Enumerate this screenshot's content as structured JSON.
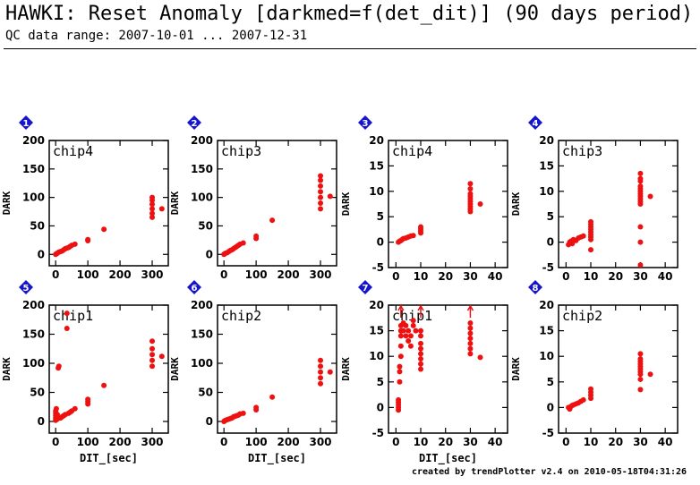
{
  "title": "HAWKI: Reset Anomaly [darkmed=f(det_dit)] (90 days period)",
  "subtitle": "QC data range: 2007-10-01 ... 2007-12-31",
  "footer": "created by trendPlotter v2.4 on 2010-05-18T04:31:26",
  "colors": {
    "points": "#ee1111",
    "badge": "#1515cc",
    "axis": "#000000"
  },
  "chart_data": [
    {
      "panel": "1",
      "type": "scatter",
      "label": "chip4",
      "xlabel": "",
      "ylabel": "DARK",
      "xlim": [
        -20,
        350
      ],
      "ylim": [
        -20,
        200
      ],
      "xticks": [
        0,
        100,
        200,
        300
      ],
      "yticks": [
        0,
        50,
        100,
        150,
        200
      ],
      "points": [
        [
          0,
          0
        ],
        [
          2,
          1
        ],
        [
          5,
          2
        ],
        [
          10,
          4
        ],
        [
          15,
          5
        ],
        [
          20,
          6
        ],
        [
          25,
          8
        ],
        [
          30,
          10
        ],
        [
          35,
          11
        ],
        [
          40,
          12
        ],
        [
          45,
          14
        ],
        [
          50,
          16
        ],
        [
          60,
          18
        ],
        [
          100,
          24
        ],
        [
          100,
          26
        ],
        [
          150,
          44
        ],
        [
          300,
          65
        ],
        [
          300,
          72
        ],
        [
          300,
          80
        ],
        [
          300,
          88
        ],
        [
          300,
          95
        ],
        [
          300,
          100
        ],
        [
          330,
          80
        ]
      ]
    },
    {
      "panel": "2",
      "type": "scatter",
      "label": "chip3",
      "xlabel": "",
      "ylabel": "DARK",
      "xlim": [
        -20,
        350
      ],
      "ylim": [
        -20,
        200
      ],
      "xticks": [
        0,
        100,
        200,
        300
      ],
      "yticks": [
        0,
        50,
        100,
        150,
        200
      ],
      "points": [
        [
          0,
          0
        ],
        [
          2,
          1
        ],
        [
          5,
          2
        ],
        [
          10,
          3
        ],
        [
          15,
          5
        ],
        [
          20,
          7
        ],
        [
          25,
          8
        ],
        [
          30,
          10
        ],
        [
          35,
          12
        ],
        [
          40,
          14
        ],
        [
          45,
          16
        ],
        [
          50,
          18
        ],
        [
          60,
          20
        ],
        [
          100,
          28
        ],
        [
          100,
          32
        ],
        [
          150,
          60
        ],
        [
          300,
          80
        ],
        [
          300,
          90
        ],
        [
          300,
          100
        ],
        [
          300,
          110
        ],
        [
          300,
          120
        ],
        [
          300,
          130
        ],
        [
          300,
          138
        ],
        [
          330,
          102
        ]
      ]
    },
    {
      "panel": "3",
      "type": "scatter",
      "label": "chip4",
      "xlabel": "",
      "ylabel": "DARK",
      "xlim": [
        -3,
        45
      ],
      "ylim": [
        -5,
        20
      ],
      "xticks": [
        0,
        10,
        20,
        30,
        40
      ],
      "yticks": [
        -5,
        0,
        5,
        10,
        15,
        20
      ],
      "points": [
        [
          1,
          0
        ],
        [
          1.5,
          0.2
        ],
        [
          2,
          0.3
        ],
        [
          2.5,
          0.5
        ],
        [
          3,
          0.7
        ],
        [
          4,
          0.8
        ],
        [
          5,
          1.0
        ],
        [
          6,
          1.2
        ],
        [
          7,
          1.3
        ],
        [
          10,
          1.8
        ],
        [
          10,
          2.2
        ],
        [
          10,
          2.6
        ],
        [
          10,
          3.0
        ],
        [
          30,
          6.0
        ],
        [
          30,
          6.5
        ],
        [
          30,
          7.0
        ],
        [
          30,
          7.5
        ],
        [
          30,
          8.0
        ],
        [
          30,
          8.5
        ],
        [
          30,
          9.0
        ],
        [
          30,
          9.5
        ],
        [
          30,
          10.5
        ],
        [
          30,
          11.5
        ],
        [
          34,
          7.5
        ]
      ]
    },
    {
      "panel": "4",
      "type": "scatter",
      "label": "chip3",
      "xlabel": "",
      "ylabel": "DARK",
      "xlim": [
        -3,
        45
      ],
      "ylim": [
        -5,
        20
      ],
      "xticks": [
        0,
        10,
        20,
        30,
        40
      ],
      "yticks": [
        -5,
        0,
        5,
        10,
        15,
        20
      ],
      "points": [
        [
          1,
          -0.5
        ],
        [
          1.5,
          0
        ],
        [
          2,
          0.2
        ],
        [
          2.5,
          -0.3
        ],
        [
          3,
          0.5
        ],
        [
          4,
          0.3
        ],
        [
          5,
          0.8
        ],
        [
          6,
          1.0
        ],
        [
          7,
          1.2
        ],
        [
          10,
          -1.5
        ],
        [
          10,
          0.5
        ],
        [
          10,
          1.0
        ],
        [
          10,
          1.5
        ],
        [
          10,
          2.0
        ],
        [
          10,
          2.5
        ],
        [
          10,
          3.0
        ],
        [
          10,
          3.5
        ],
        [
          10,
          4.0
        ],
        [
          30,
          -4.5
        ],
        [
          30,
          0
        ],
        [
          30,
          3
        ],
        [
          30,
          7.5
        ],
        [
          30,
          8.0
        ],
        [
          30,
          8.5
        ],
        [
          30,
          9.0
        ],
        [
          30,
          9.5
        ],
        [
          30,
          10.0
        ],
        [
          30,
          10.5
        ],
        [
          30,
          11.0
        ],
        [
          30,
          12.0
        ],
        [
          30,
          12.5
        ],
        [
          30,
          13.5
        ],
        [
          34,
          9.0
        ]
      ]
    },
    {
      "panel": "5",
      "type": "scatter",
      "label": "chip1",
      "xlabel": "DIT_[sec]",
      "ylabel": "DARK",
      "xlim": [
        -20,
        350
      ],
      "ylim": [
        -20,
        200
      ],
      "xticks": [
        0,
        100,
        200,
        300
      ],
      "yticks": [
        0,
        50,
        100,
        150,
        200
      ],
      "points": [
        [
          0,
          2
        ],
        [
          0,
          6
        ],
        [
          0,
          10
        ],
        [
          0,
          14
        ],
        [
          0,
          18
        ],
        [
          2,
          22
        ],
        [
          5,
          4
        ],
        [
          5,
          12
        ],
        [
          8,
          92
        ],
        [
          10,
          95
        ],
        [
          15,
          6
        ],
        [
          20,
          8
        ],
        [
          25,
          10
        ],
        [
          30,
          12
        ],
        [
          35,
          186
        ],
        [
          35,
          160
        ],
        [
          40,
          14
        ],
        [
          45,
          16
        ],
        [
          50,
          18
        ],
        [
          60,
          22
        ],
        [
          100,
          30
        ],
        [
          100,
          34
        ],
        [
          100,
          38
        ],
        [
          150,
          62
        ],
        [
          300,
          95
        ],
        [
          300,
          105
        ],
        [
          300,
          115
        ],
        [
          300,
          125
        ],
        [
          300,
          138
        ],
        [
          330,
          112
        ]
      ]
    },
    {
      "panel": "6",
      "type": "scatter",
      "label": "chip2",
      "xlabel": "DIT_[sec]",
      "ylabel": "DARK",
      "xlim": [
        -20,
        350
      ],
      "ylim": [
        -20,
        200
      ],
      "xticks": [
        0,
        100,
        200,
        300
      ],
      "yticks": [
        0,
        50,
        100,
        150,
        200
      ],
      "points": [
        [
          0,
          0
        ],
        [
          2,
          1
        ],
        [
          5,
          2
        ],
        [
          10,
          3
        ],
        [
          15,
          4
        ],
        [
          20,
          5
        ],
        [
          25,
          6
        ],
        [
          30,
          8
        ],
        [
          35,
          9
        ],
        [
          40,
          10
        ],
        [
          45,
          11
        ],
        [
          50,
          13
        ],
        [
          60,
          14
        ],
        [
          100,
          20
        ],
        [
          100,
          24
        ],
        [
          150,
          42
        ],
        [
          300,
          65
        ],
        [
          300,
          75
        ],
        [
          300,
          85
        ],
        [
          300,
          95
        ],
        [
          300,
          105
        ],
        [
          330,
          85
        ]
      ]
    },
    {
      "panel": "7",
      "type": "scatter",
      "label": "chip1",
      "xlabel": "DIT_[sec]",
      "ylabel": "DARK",
      "xlim": [
        -3,
        45
      ],
      "ylim": [
        -5,
        20
      ],
      "xticks": [
        0,
        10,
        20,
        30,
        40
      ],
      "yticks": [
        -5,
        0,
        5,
        10,
        15,
        20
      ],
      "offscale_x": [
        2,
        10,
        30
      ],
      "points": [
        [
          1,
          -0.5
        ],
        [
          1,
          0
        ],
        [
          1,
          0.5
        ],
        [
          1,
          1
        ],
        [
          1,
          1.5
        ],
        [
          1.5,
          5
        ],
        [
          1.5,
          7
        ],
        [
          1.5,
          8
        ],
        [
          2,
          10
        ],
        [
          2,
          12
        ],
        [
          2,
          14
        ],
        [
          2,
          15
        ],
        [
          2,
          16
        ],
        [
          3,
          15
        ],
        [
          3,
          16.5
        ],
        [
          4,
          14
        ],
        [
          4,
          16
        ],
        [
          5,
          13
        ],
        [
          5,
          15
        ],
        [
          6,
          12
        ],
        [
          6,
          14
        ],
        [
          7,
          16
        ],
        [
          7,
          17
        ],
        [
          8,
          15
        ],
        [
          10,
          7.5
        ],
        [
          10,
          8.5
        ],
        [
          10,
          9.5
        ],
        [
          10,
          10.5
        ],
        [
          10,
          11.5
        ],
        [
          10,
          12.5
        ],
        [
          10,
          14
        ],
        [
          10,
          15
        ],
        [
          30,
          10.5
        ],
        [
          30,
          11.5
        ],
        [
          30,
          12.5
        ],
        [
          30,
          13.5
        ],
        [
          30,
          14.5
        ],
        [
          30,
          15.5
        ],
        [
          30,
          16.5
        ],
        [
          34,
          9.8
        ]
      ]
    },
    {
      "panel": "8",
      "type": "scatter",
      "label": "chip2",
      "xlabel": "",
      "ylabel": "DARK",
      "xlim": [
        -3,
        45
      ],
      "ylim": [
        -5,
        20
      ],
      "xticks": [
        0,
        10,
        20,
        30,
        40
      ],
      "yticks": [
        -5,
        0,
        5,
        10,
        15,
        20
      ],
      "points": [
        [
          1,
          0
        ],
        [
          1.5,
          -0.3
        ],
        [
          2,
          0.2
        ],
        [
          2.5,
          0.4
        ],
        [
          3,
          0.5
        ],
        [
          4,
          0.7
        ],
        [
          5,
          0.9
        ],
        [
          6,
          1.2
        ],
        [
          7,
          1.5
        ],
        [
          10,
          1.8
        ],
        [
          10,
          2.4
        ],
        [
          10,
          3.0
        ],
        [
          10,
          3.6
        ],
        [
          30,
          3.5
        ],
        [
          30,
          5.5
        ],
        [
          30,
          6.5
        ],
        [
          30,
          7.0
        ],
        [
          30,
          7.5
        ],
        [
          30,
          8.0
        ],
        [
          30,
          8.5
        ],
        [
          30,
          9.0
        ],
        [
          30,
          9.5
        ],
        [
          30,
          10.5
        ],
        [
          34,
          6.5
        ]
      ]
    }
  ]
}
